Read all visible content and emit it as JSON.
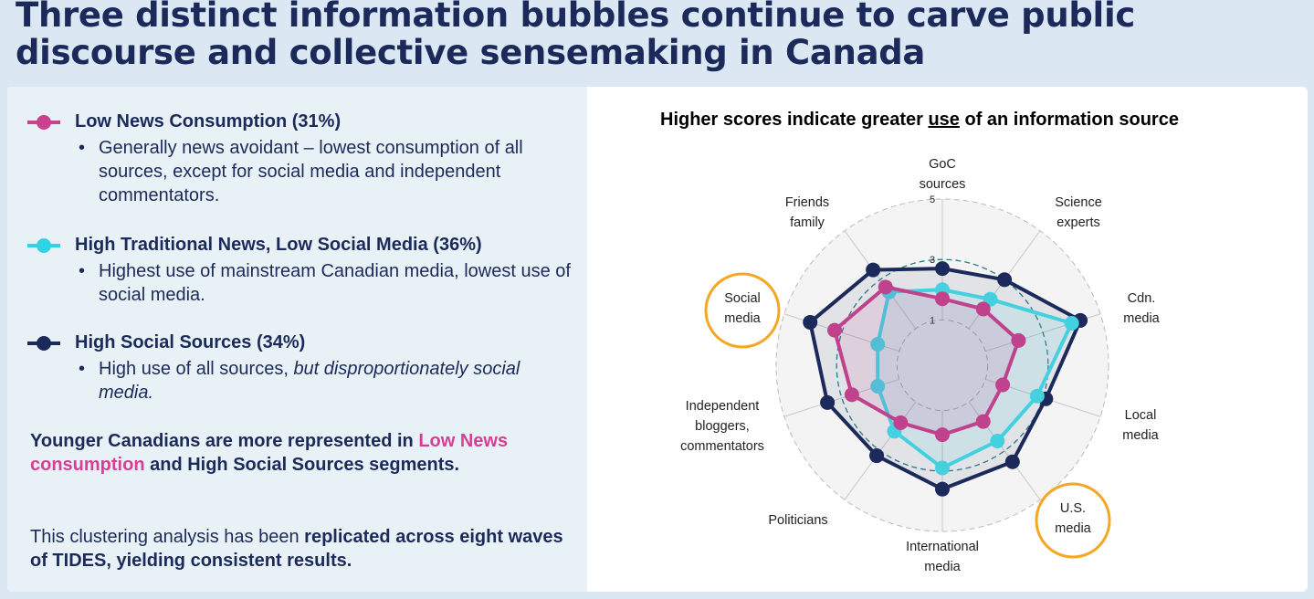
{
  "title": "Three distinct information bubbles continue to carve public discourse and collective sensemaking in Canada",
  "segments": [
    {
      "label": "Low News Consumption (31%)",
      "color": "#c9418f",
      "bullet": "Generally news avoidant – lowest consumption of all sources, except for social media and independent commentators."
    },
    {
      "label": "High Traditional News, Low Social Media (36%)",
      "color": "#2fd3e3",
      "bullet": "Highest use of mainstream Canadian media, lowest use of social media."
    },
    {
      "label": "High Social Sources (34%)",
      "color": "#1b2a5a",
      "bullet_plain": "High use of all sources, ",
      "bullet_italic": "but disproportionately social media."
    }
  ],
  "note1": {
    "a": "Younger Canadians are more represented in ",
    "b": "Low News consumption",
    "c": " and High Social Sources segments."
  },
  "note2": {
    "a": "This clustering analysis has been ",
    "b": "replicated across eight waves of TIDES, yielding consistent results."
  },
  "chart_data": {
    "type": "radar",
    "title_parts": [
      "Higher scores indicate greater ",
      "use",
      " of an information source"
    ],
    "axes": [
      "GoC sources",
      "Science experts",
      "Cdn. media",
      "Local media",
      "U.S. media",
      "International media",
      "Politicians",
      "Independent bloggers, commentators",
      "Social media",
      "Friends family"
    ],
    "highlighted_axes": [
      "Social media",
      "U.S. media"
    ],
    "highlight_color": "#f5a623",
    "tick_labels": [
      "1",
      "3",
      "5"
    ],
    "rlim": [
      -0.5,
      5
    ],
    "series": [
      {
        "color": "#1b2a5a",
        "values": [
          2.7,
          3.0,
          4.3,
          3.1,
          3.45,
          3.6,
          3.2,
          3.5,
          4.1,
          3.4
        ]
      },
      {
        "color": "#45d0e0",
        "values": [
          2.0,
          2.2,
          4.0,
          2.8,
          2.6,
          2.9,
          2.2,
          1.75,
          1.75,
          2.5
        ]
      },
      {
        "color": "#c0428c",
        "values": [
          1.7,
          1.8,
          2.15,
          1.6,
          1.8,
          1.8,
          1.85,
          2.65,
          3.25,
          2.7
        ]
      }
    ]
  }
}
